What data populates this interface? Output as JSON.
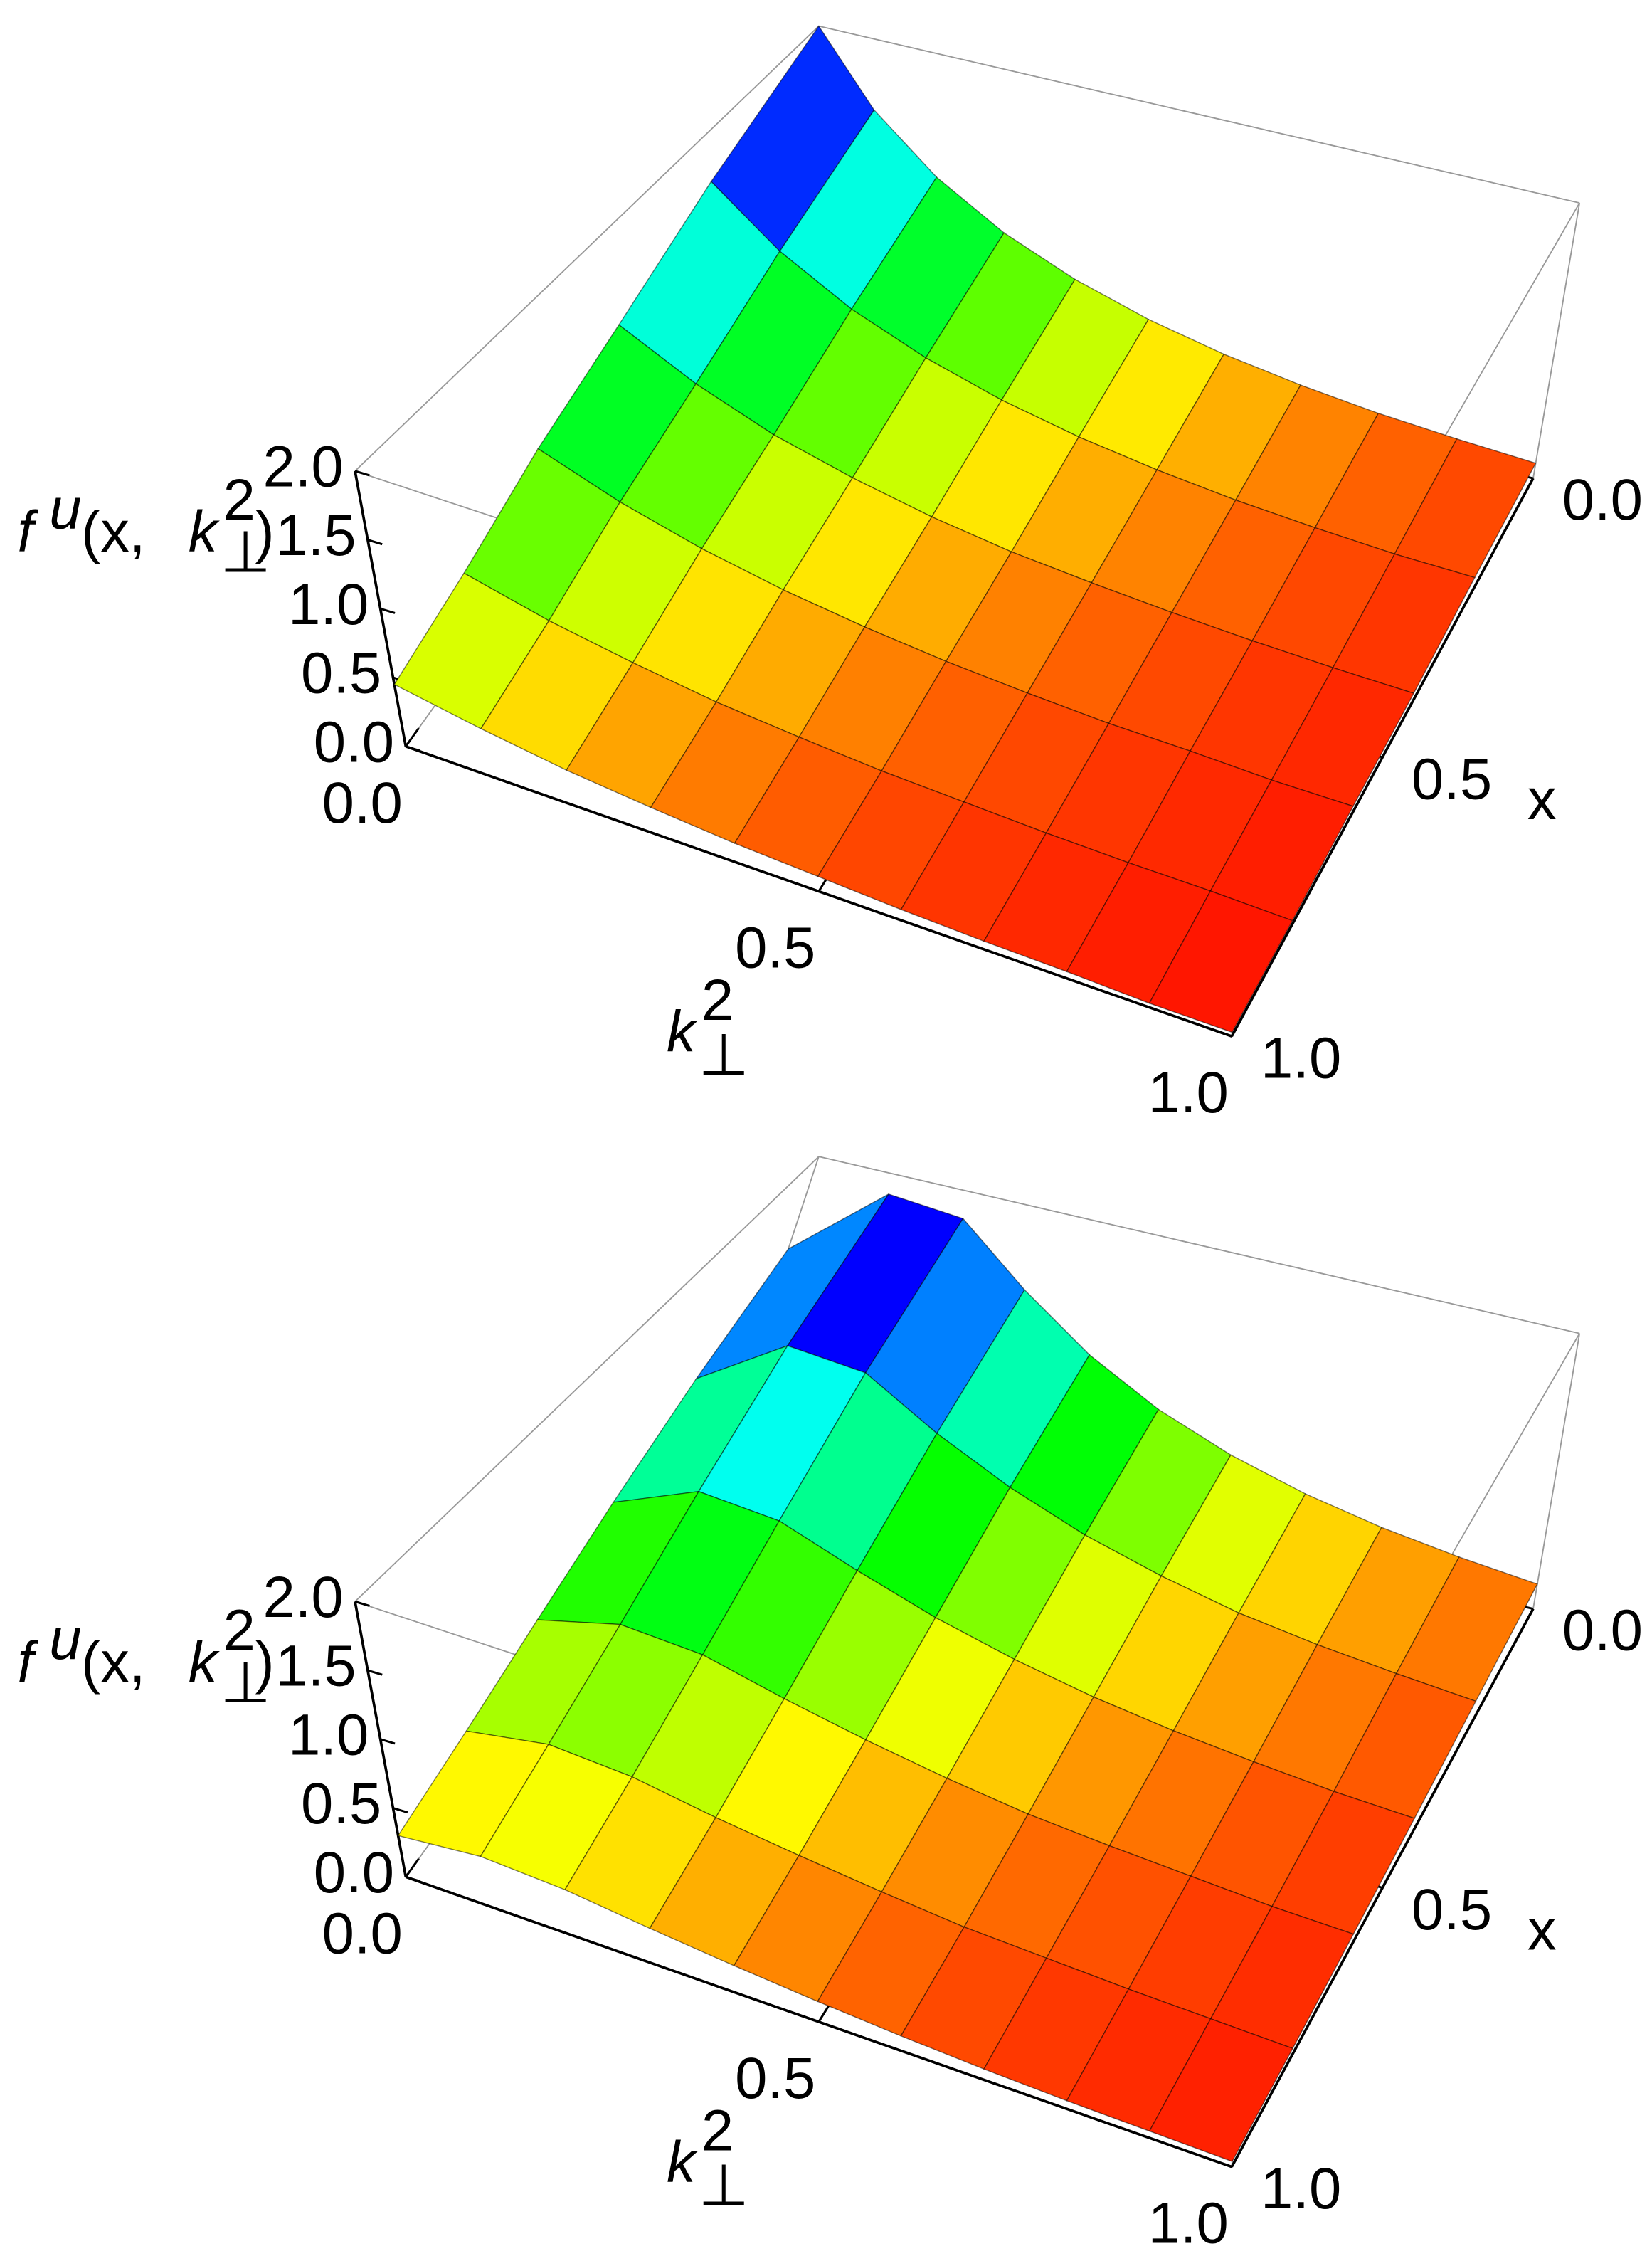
{
  "chart_data": [
    {
      "type": "surface",
      "z_label": [
        "f",
        "u",
        "(x,",
        "k",
        "⊥",
        "2",
        ")"
      ],
      "k_label": [
        "k",
        "⊥",
        "2"
      ],
      "x_label": "x",
      "k_values": [
        0,
        0.1,
        0.2,
        0.3,
        0.4,
        0.5,
        0.6,
        0.7,
        0.8,
        0.9,
        1.0
      ],
      "x_values": [
        0,
        0.2,
        0.4,
        0.6,
        0.8,
        1.0
      ],
      "z": [
        [
          2.0,
          1.5,
          1.13,
          0.85,
          0.64,
          0.48,
          0.36,
          0.27,
          0.2,
          0.15,
          0.11
        ],
        [
          1.5,
          1.13,
          0.85,
          0.64,
          0.48,
          0.36,
          0.27,
          0.2,
          0.15,
          0.11,
          0.09
        ],
        [
          1.1,
          0.83,
          0.62,
          0.47,
          0.35,
          0.26,
          0.2,
          0.15,
          0.11,
          0.08,
          0.06
        ],
        [
          0.85,
          0.64,
          0.48,
          0.36,
          0.27,
          0.2,
          0.15,
          0.11,
          0.09,
          0.06,
          0.05
        ],
        [
          0.6,
          0.45,
          0.34,
          0.25,
          0.19,
          0.14,
          0.11,
          0.08,
          0.06,
          0.05,
          0.03
        ],
        [
          0.45,
          0.34,
          0.25,
          0.19,
          0.14,
          0.11,
          0.08,
          0.06,
          0.05,
          0.03,
          0.03
        ]
      ],
      "klim": [
        0,
        1
      ],
      "xlim": [
        0,
        1
      ],
      "zlim": [
        0,
        2
      ],
      "kticks": [
        {
          "value": 0,
          "label": "0.0"
        },
        0.5,
        {
          "value": 1,
          "label": "1.0"
        }
      ],
      "xticks": [
        {
          "value": 0,
          "label": "0.0"
        },
        0.5,
        {
          "value": 1,
          "label": "1.0"
        }
      ],
      "zticks": [
        {
          "value": 0,
          "label": "0.0"
        },
        0.5,
        {
          "value": 1,
          "label": "1.0"
        },
        1.5,
        {
          "value": 2,
          "label": "2.0"
        }
      ]
    },
    {
      "type": "surface",
      "z_label": [
        "f",
        "u",
        "(x,",
        "k",
        "⊥",
        "2",
        ")"
      ],
      "k_label": [
        "k",
        "⊥",
        "2"
      ],
      "x_label": "x",
      "k_values": [
        0,
        0.1,
        0.2,
        0.3,
        0.4,
        0.5,
        0.6,
        0.7,
        0.8,
        0.9,
        1.0
      ],
      "x_values": [
        0,
        0.2,
        0.4,
        0.6,
        0.8,
        1.0
      ],
      "z": [
        [
          1.3,
          1.85,
          1.8,
          1.4,
          1.05,
          0.78,
          0.58,
          0.43,
          0.32,
          0.24,
          0.18
        ],
        [
          1.0,
          1.4,
          1.35,
          1.05,
          0.8,
          0.6,
          0.45,
          0.33,
          0.25,
          0.19,
          0.14
        ],
        [
          0.75,
          1.0,
          0.95,
          0.75,
          0.57,
          0.43,
          0.32,
          0.24,
          0.18,
          0.13,
          0.1
        ],
        [
          0.55,
          0.7,
          0.66,
          0.52,
          0.4,
          0.3,
          0.22,
          0.17,
          0.13,
          0.09,
          0.07
        ],
        [
          0.4,
          0.5,
          0.46,
          0.36,
          0.28,
          0.21,
          0.15,
          0.12,
          0.09,
          0.07,
          0.05
        ],
        [
          0.3,
          0.36,
          0.33,
          0.26,
          0.2,
          0.15,
          0.11,
          0.08,
          0.06,
          0.05,
          0.04
        ]
      ],
      "klim": [
        0,
        1
      ],
      "xlim": [
        0,
        1
      ],
      "zlim": [
        0,
        2
      ],
      "kticks": [
        {
          "value": 0,
          "label": "0.0"
        },
        0.5,
        {
          "value": 1,
          "label": "1.0"
        }
      ],
      "xticks": [
        {
          "value": 0,
          "label": "0.0"
        },
        0.5,
        {
          "value": 1,
          "label": "1.0"
        }
      ],
      "zticks": [
        {
          "value": 0,
          "label": "0.0"
        },
        0.5,
        {
          "value": 1,
          "label": "1.0"
        },
        1.5,
        {
          "value": 2,
          "label": "2.0"
        }
      ]
    }
  ]
}
